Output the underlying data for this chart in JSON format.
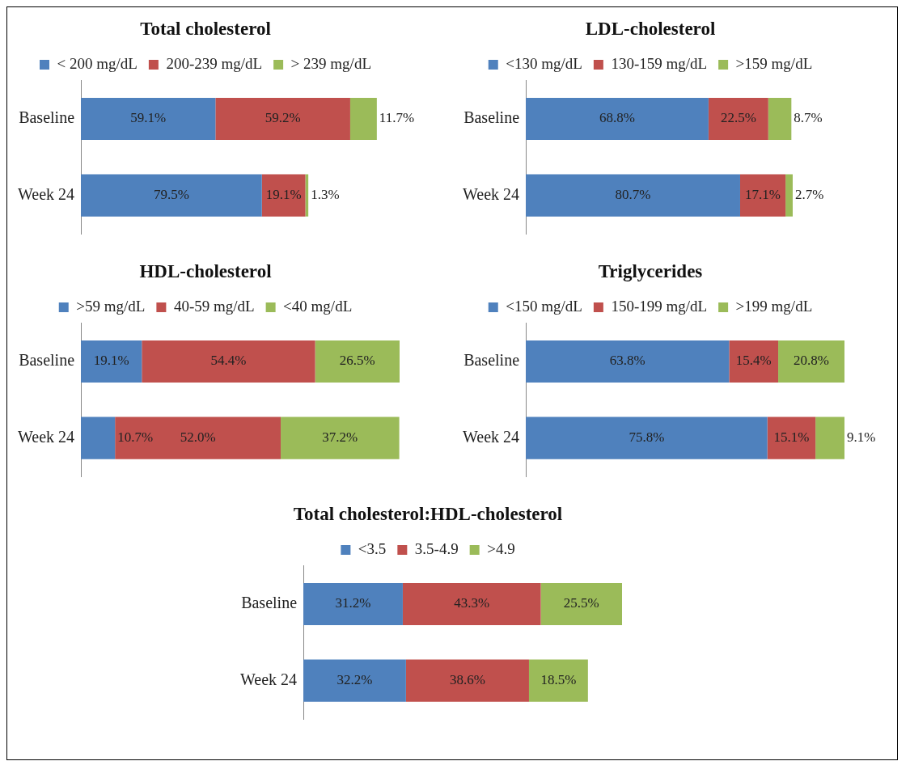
{
  "chart_data": [
    {
      "type": "bar",
      "title": "Total cholesterol",
      "orientation": "horizontal",
      "stacked": true,
      "legend": "top",
      "grid": false,
      "categories": [
        "Baseline",
        "Week 24"
      ],
      "series": [
        {
          "name": "< 200 mg/dL",
          "color": "#4f81bd",
          "values": [
            59.1,
            79.5
          ],
          "value_labels": [
            "59.1%",
            "79.5%"
          ]
        },
        {
          "name": "200-239 mg/dL",
          "color": "#c0504d",
          "values": [
            59.2,
            19.1
          ],
          "value_labels": [
            "59.2%",
            "19.1%"
          ]
        },
        {
          "name": "> 239 mg/dL",
          "color": "#9bbb59",
          "values": [
            11.7,
            1.3
          ],
          "value_labels": [
            "11.7%",
            "1.3%"
          ]
        }
      ]
    },
    {
      "type": "bar",
      "title": "LDL-cholesterol",
      "orientation": "horizontal",
      "stacked": true,
      "legend": "top",
      "grid": false,
      "categories": [
        "Baseline",
        "Week 24"
      ],
      "series": [
        {
          "name": "<130 mg/dL",
          "color": "#4f81bd",
          "values": [
            68.8,
            80.7
          ],
          "value_labels": [
            "68.8%",
            "80.7%"
          ]
        },
        {
          "name": "130-159 mg/dL",
          "color": "#c0504d",
          "values": [
            22.5,
            17.1
          ],
          "value_labels": [
            "22.5%",
            "17.1%"
          ]
        },
        {
          "name": ">159 mg/dL",
          "color": "#9bbb59",
          "values": [
            8.7,
            2.7
          ],
          "value_labels": [
            "8.7%",
            "2.7%"
          ]
        }
      ]
    },
    {
      "type": "bar",
      "title": "HDL-cholesterol",
      "orientation": "horizontal",
      "stacked": true,
      "legend": "top",
      "grid": false,
      "categories": [
        "Baseline",
        "Week 24"
      ],
      "series": [
        {
          "name": ">59 mg/dL",
          "color": "#4f81bd",
          "values": [
            19.1,
            10.7
          ],
          "value_labels": [
            "19.1%",
            "10.7%"
          ]
        },
        {
          "name": "40-59 mg/dL",
          "color": "#c0504d",
          "values": [
            54.4,
            52.0
          ],
          "value_labels": [
            "54.4%",
            "52.0%"
          ]
        },
        {
          "name": "<40 mg/dL",
          "color": "#9bbb59",
          "values": [
            26.5,
            37.2
          ],
          "value_labels": [
            "26.5%",
            "37.2%"
          ]
        }
      ]
    },
    {
      "type": "bar",
      "title": "Triglycerides",
      "orientation": "horizontal",
      "stacked": true,
      "legend": "top",
      "grid": false,
      "categories": [
        "Baseline",
        "Week 24"
      ],
      "series": [
        {
          "name": "<150 mg/dL",
          "color": "#4f81bd",
          "values": [
            63.8,
            75.8
          ],
          "value_labels": [
            "63.8%",
            "75.8%"
          ]
        },
        {
          "name": "150-199 mg/dL",
          "color": "#c0504d",
          "values": [
            15.4,
            15.1
          ],
          "value_labels": [
            "15.4%",
            "15.1%"
          ]
        },
        {
          "name": ">199 mg/dL",
          "color": "#9bbb59",
          "values": [
            20.8,
            9.1
          ],
          "value_labels": [
            "20.8%",
            "9.1%"
          ]
        }
      ]
    },
    {
      "type": "bar",
      "title": "Total cholesterol:HDL-cholesterol",
      "orientation": "horizontal",
      "stacked": true,
      "legend": "top",
      "grid": false,
      "categories": [
        "Baseline",
        "Week 24"
      ],
      "series": [
        {
          "name": "<3.5",
          "color": "#4f81bd",
          "values": [
            31.2,
            32.2
          ],
          "value_labels": [
            "31.2%",
            "32.2%"
          ]
        },
        {
          "name": "3.5-4.9",
          "color": "#c0504d",
          "values": [
            43.3,
            38.6
          ],
          "value_labels": [
            "43.3%",
            "38.6%"
          ]
        },
        {
          "name": ">4.9",
          "color": "#9bbb59",
          "values": [
            25.5,
            18.5
          ],
          "value_labels": [
            "25.5%",
            "18.5%"
          ]
        }
      ]
    }
  ]
}
